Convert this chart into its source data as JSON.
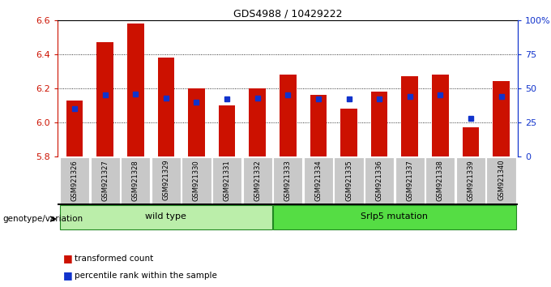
{
  "title": "GDS4988 / 10429222",
  "samples": [
    "GSM921326",
    "GSM921327",
    "GSM921328",
    "GSM921329",
    "GSM921330",
    "GSM921331",
    "GSM921332",
    "GSM921333",
    "GSM921334",
    "GSM921335",
    "GSM921336",
    "GSM921337",
    "GSM921338",
    "GSM921339",
    "GSM921340"
  ],
  "transformed_count": [
    6.13,
    6.47,
    6.58,
    6.38,
    6.2,
    6.1,
    6.2,
    6.28,
    6.16,
    6.08,
    6.18,
    6.27,
    6.28,
    5.97,
    6.24
  ],
  "percentile": [
    35,
    45,
    46,
    43,
    40,
    42,
    43,
    45,
    42,
    42,
    42,
    44,
    45,
    28,
    44
  ],
  "bar_bottom": 5.8,
  "ylim_left": [
    5.8,
    6.6
  ],
  "ylim_right": [
    0,
    100
  ],
  "yticks_left": [
    5.8,
    6.0,
    6.2,
    6.4,
    6.6
  ],
  "yticks_right": [
    0,
    25,
    50,
    75,
    100
  ],
  "ytick_labels_right": [
    "0",
    "25",
    "50",
    "75",
    "100%"
  ],
  "bar_color": "#cc1100",
  "blue_color": "#1133cc",
  "groups": [
    {
      "label": "wild type",
      "start": 0,
      "end": 6
    },
    {
      "label": "Srlp5 mutation",
      "start": 7,
      "end": 14
    }
  ],
  "group_colors": [
    "#bbeeaa",
    "#55dd44"
  ],
  "genotype_label": "genotype/variation",
  "legend_items": [
    {
      "label": "transformed count",
      "color": "#cc1100"
    },
    {
      "label": "percentile rank within the sample",
      "color": "#1133cc"
    }
  ]
}
